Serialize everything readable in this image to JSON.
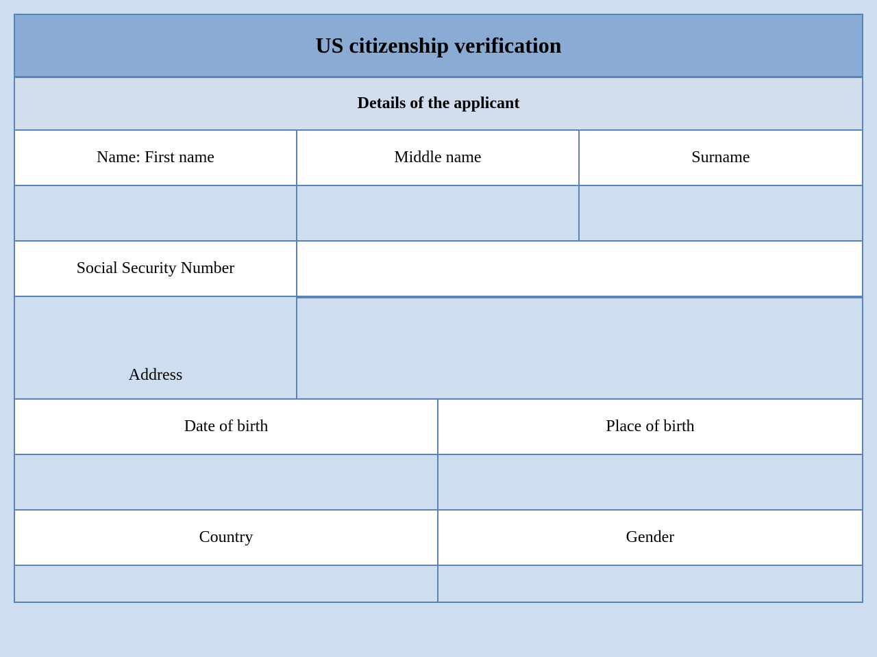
{
  "form": {
    "title": "US citizenship verification",
    "section_header": "Details of the applicant",
    "labels": {
      "first_name": "Name: First name",
      "middle_name": "Middle name",
      "surname": "Surname",
      "ssn": "Social Security Number",
      "address": "Address",
      "dob": "Date of birth",
      "pob": "Place of birth",
      "country": "Country",
      "gender": "Gender"
    },
    "values": {
      "first_name": "",
      "middle_name": "",
      "surname": "",
      "ssn": "",
      "address": "",
      "dob": "",
      "pob": "",
      "country": "",
      "gender": ""
    },
    "colors": {
      "border": "#5a84b8",
      "title_bg": "#8aacd4",
      "section_bg": "#d2ddee",
      "input_bg": "#cfddf0",
      "label_bg": "#ffffff",
      "page_bg": "#cfddf0",
      "text": "#000000"
    },
    "typography": {
      "font_family": "Times New Roman",
      "title_fontsize": 32,
      "section_fontsize": 24,
      "label_fontsize": 24
    }
  }
}
